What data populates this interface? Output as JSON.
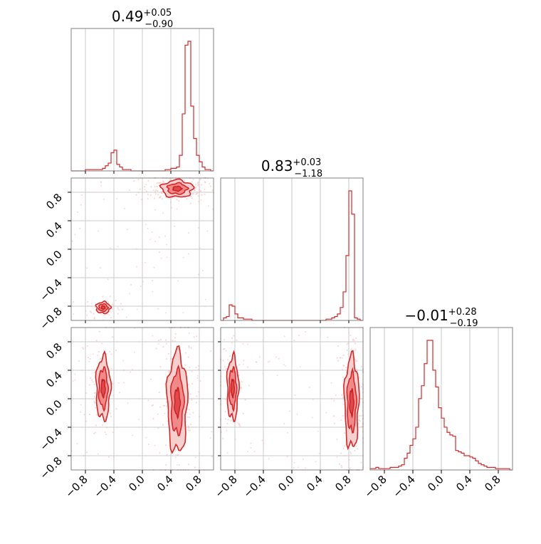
{
  "chart_data": {
    "type": "corner",
    "color": "#d62728",
    "grid": true,
    "axis_ticks": [
      -0.8,
      -0.4,
      0.0,
      0.4,
      0.8
    ],
    "axis_tick_labels": [
      "−0.8",
      "−0.4",
      "0.0",
      "0.4",
      "0.8"
    ],
    "parameters": [
      {
        "median": "0.49",
        "plus": "+0.05",
        "minus": "−0.90"
      },
      {
        "median": "0.83",
        "plus": "+0.03",
        "minus": "−1.18"
      },
      {
        "median": "−0.01",
        "plus": "+0.28",
        "minus": "−0.19"
      }
    ],
    "histograms": [
      {
        "range": [
          -1,
          1
        ],
        "counts": [
          0,
          0,
          0,
          0,
          0,
          0.01,
          0.01,
          0.01,
          0.01,
          0.01,
          0.01,
          0.02,
          0.04,
          0.06,
          0.14,
          0.16,
          0.05,
          0.03,
          0.01,
          0.01,
          0.01,
          0,
          0,
          0,
          0,
          0,
          0,
          0,
          0,
          0,
          0,
          0,
          0,
          0.01,
          0.01,
          0.02,
          0.02,
          0.03,
          0.12,
          0.44,
          0.97,
          1.0,
          0.5,
          0.25,
          0.12,
          0.07,
          0.03,
          0.01,
          0.01,
          0
        ]
      },
      {
        "range": [
          -1,
          1
        ],
        "counts": [
          0,
          0.02,
          0.03,
          0.12,
          0.11,
          0.05,
          0.02,
          0.02,
          0.01,
          0.01,
          0.01,
          0,
          0,
          0,
          0,
          0,
          0,
          0,
          0,
          0,
          0,
          0,
          0,
          0,
          0,
          0,
          0,
          0,
          0,
          0,
          0,
          0,
          0,
          0,
          0,
          0,
          0,
          0.01,
          0.01,
          0.02,
          0.03,
          0.05,
          0.1,
          0.22,
          0.5,
          1.0,
          0.82,
          0.02,
          0.01,
          0
        ]
      },
      {
        "range": [
          -1,
          1
        ],
        "counts": [
          0.01,
          0.01,
          0.02,
          0.01,
          0.01,
          0.01,
          0.01,
          0.02,
          0.02,
          0.02,
          0.03,
          0.04,
          0.09,
          0.13,
          0.19,
          0.24,
          0.33,
          0.55,
          0.65,
          0.82,
          1.0,
          1.0,
          0.77,
          0.64,
          0.48,
          0.4,
          0.33,
          0.29,
          0.27,
          0.26,
          0.15,
          0.14,
          0.13,
          0.11,
          0.11,
          0.1,
          0.09,
          0.07,
          0.05,
          0.04,
          0.03,
          0.02,
          0.02,
          0.02,
          0.01,
          0.01,
          0.01,
          0.01,
          0.01,
          0
        ]
      }
    ],
    "contour_modes": {
      "p1_vs_p0": [
        {
          "x": 0.49,
          "y": 0.85,
          "sx": 0.11,
          "sy": 0.06
        },
        {
          "x": -0.55,
          "y": -0.82,
          "sx": 0.05,
          "sy": 0.04
        }
      ],
      "p2_vs_p0": [
        {
          "x": 0.49,
          "y": -0.05,
          "sx": 0.07,
          "sy": 0.35
        },
        {
          "x": -0.55,
          "y": 0.15,
          "sx": 0.05,
          "sy": 0.22
        }
      ],
      "p2_vs_p1": [
        {
          "x": 0.84,
          "y": -0.05,
          "sx": 0.05,
          "sy": 0.32
        },
        {
          "x": -0.83,
          "y": 0.15,
          "sx": 0.04,
          "sy": 0.22
        }
      ]
    }
  }
}
